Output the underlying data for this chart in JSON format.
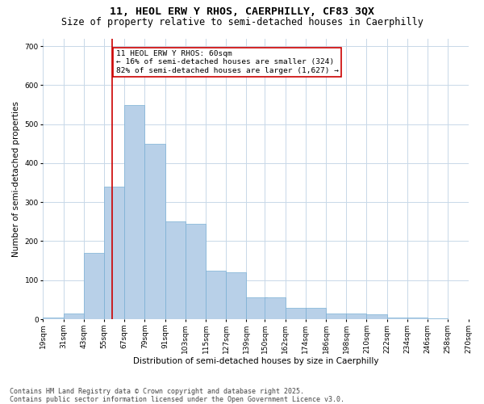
{
  "title": "11, HEOL ERW Y RHOS, CAERPHILLY, CF83 3QX",
  "subtitle": "Size of property relative to semi-detached houses in Caerphilly",
  "xlabel": "Distribution of semi-detached houses by size in Caerphilly",
  "ylabel": "Number of semi-detached properties",
  "bin_edges": [
    19,
    31,
    43,
    55,
    67,
    79,
    91,
    103,
    115,
    127,
    139,
    150,
    162,
    174,
    186,
    198,
    210,
    222,
    234,
    246,
    258
  ],
  "bar_heights": [
    5,
    15,
    170,
    340,
    550,
    450,
    250,
    245,
    125,
    120,
    55,
    55,
    30,
    30,
    15,
    15,
    12,
    5,
    5,
    3
  ],
  "bar_color": "#b8d0e8",
  "bar_edge_color": "#7aafd4",
  "property_size": 60,
  "property_line_color": "#cc0000",
  "annotation_text": "11 HEOL ERW Y RHOS: 60sqm\n← 16% of semi-detached houses are smaller (324)\n82% of semi-detached houses are larger (1,627) →",
  "annotation_box_color": "#ffffff",
  "annotation_box_edge_color": "#cc0000",
  "ylim": [
    0,
    720
  ],
  "yticks": [
    0,
    100,
    200,
    300,
    400,
    500,
    600,
    700
  ],
  "background_color": "#ffffff",
  "grid_color": "#c8d8e8",
  "footer_text": "Contains HM Land Registry data © Crown copyright and database right 2025.\nContains public sector information licensed under the Open Government Licence v3.0.",
  "title_fontsize": 9.5,
  "subtitle_fontsize": 8.5,
  "axis_label_fontsize": 7.5,
  "tick_fontsize": 6.5,
  "annotation_fontsize": 6.8,
  "footer_fontsize": 6.0
}
